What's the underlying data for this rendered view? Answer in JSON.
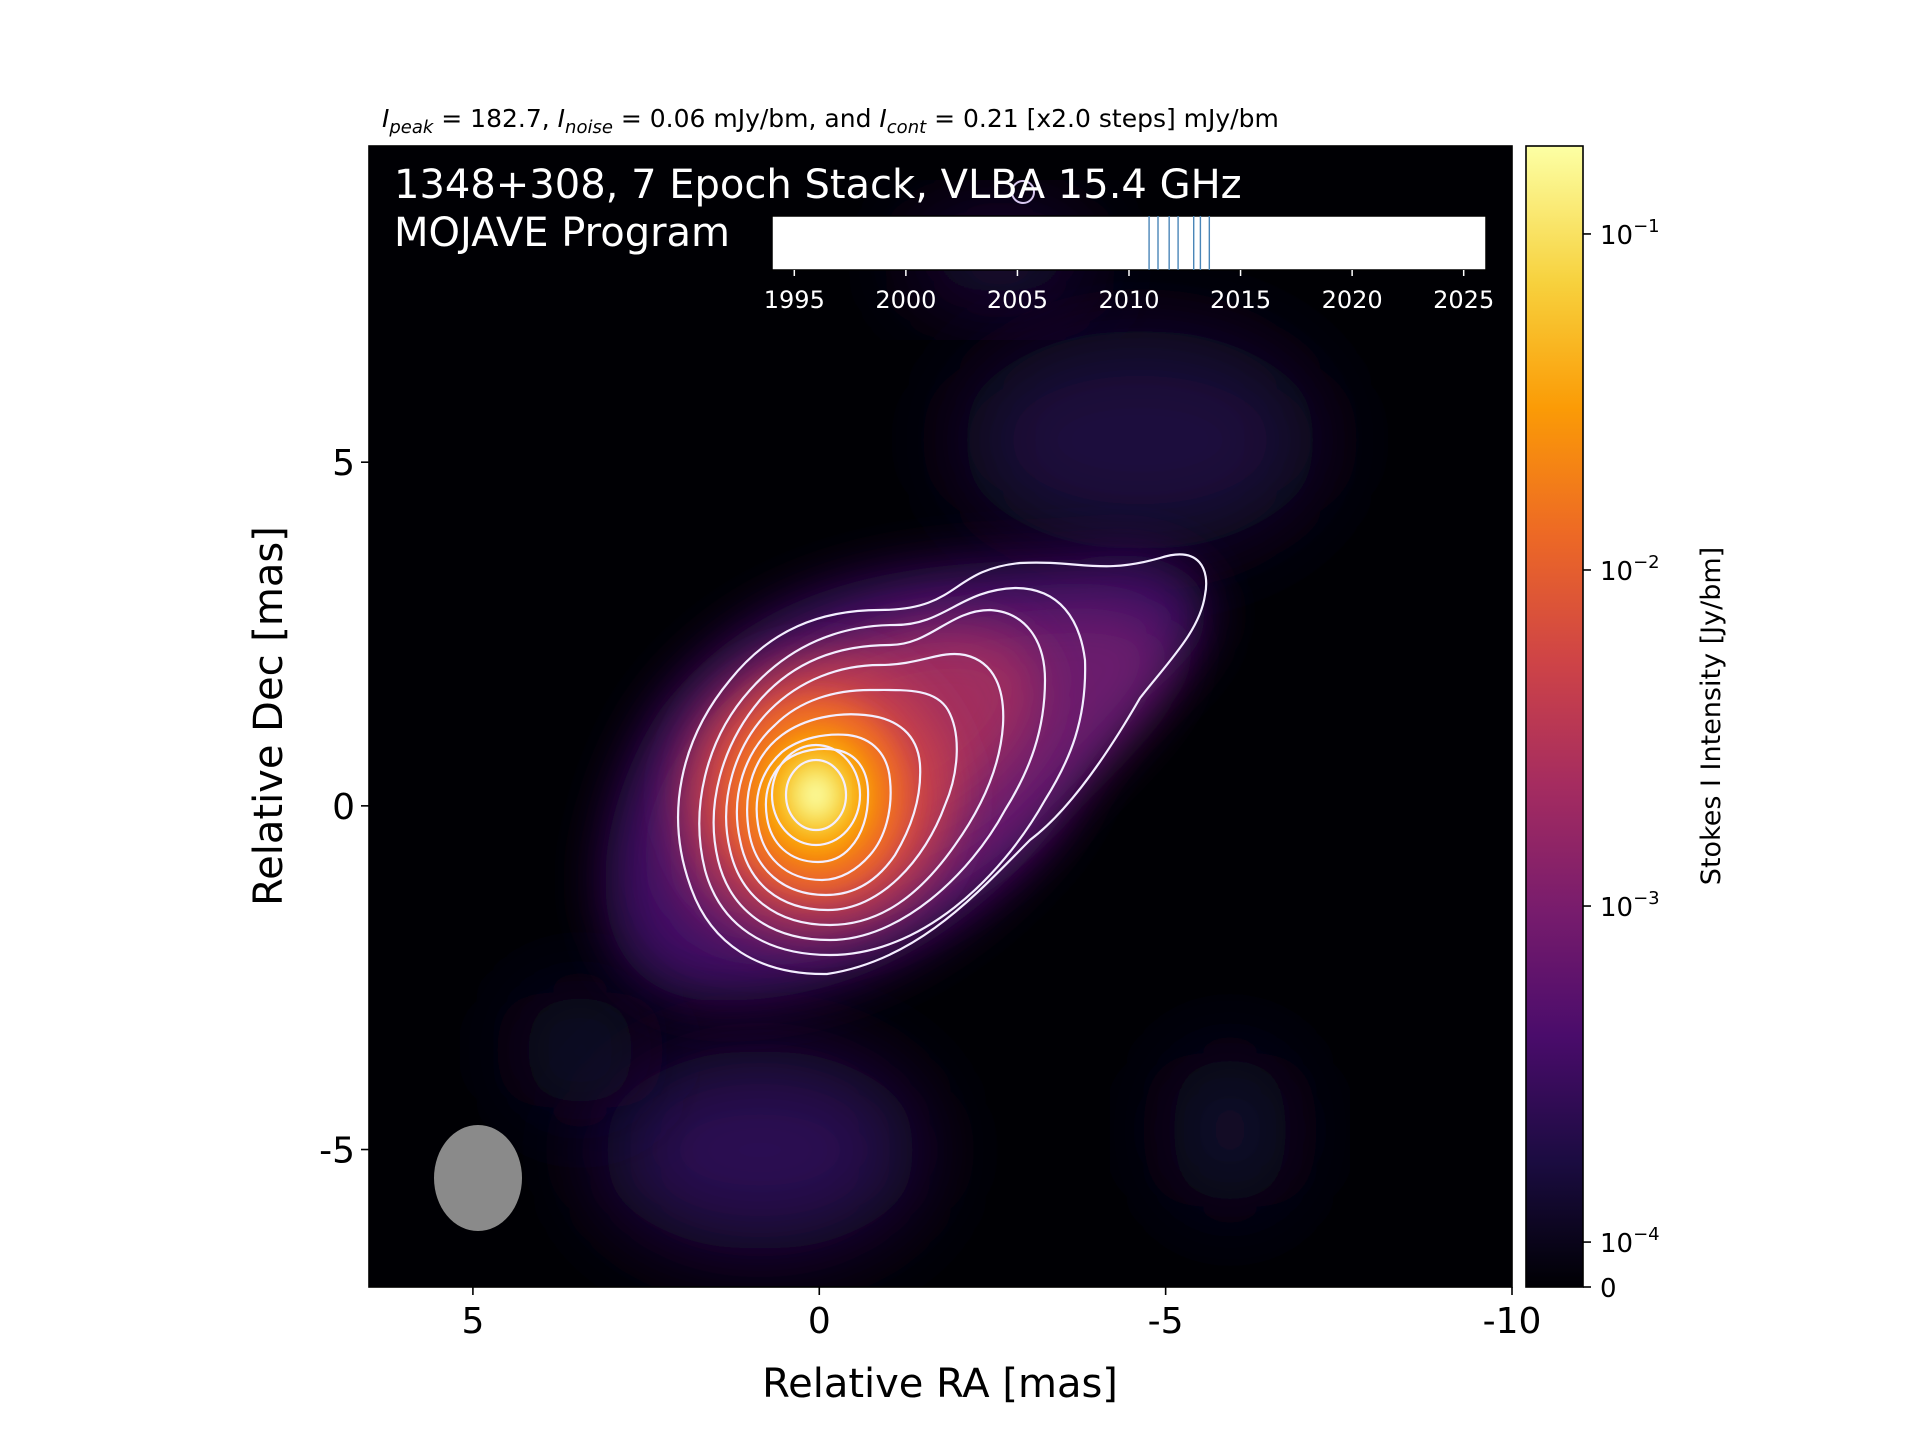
{
  "header": {
    "line_prefix": "I",
    "peak_sub": "peak",
    "peak_text": " = 182.7, ",
    "noise_sub": "noise",
    "noise_text": " = 0.06 mJy/bm, and ",
    "cont_sub": "cont",
    "cont_text": " = 0.21 [x2.0 steps] mJy/bm"
  },
  "overlay": {
    "title_line1": "1348+308, 7 Epoch Stack, VLBA 15.4 GHz",
    "title_line2": "MOJAVE Program"
  },
  "colors": {
    "background": "#000004",
    "contour": "#f3eeff",
    "beam": "#8a8a8a",
    "epoch_tick": "#4a86b8",
    "cmap": [
      "#000004",
      "#1b0c41",
      "#4a0c6b",
      "#781c6d",
      "#a52c60",
      "#cf4446",
      "#ed6925",
      "#fb9b06",
      "#f7d13d",
      "#fcffa4"
    ]
  },
  "chart_data": [
    {
      "type": "heatmap",
      "title": "1348+308, 7 Epoch Stack, VLBA 15.4 GHz",
      "subtitle": "MOJAVE Program",
      "xlabel": "Relative RA [mas]",
      "ylabel": "Relative Dec [mas]",
      "xlim": [
        6.5,
        -10
      ],
      "ylim": [
        -7,
        9.6
      ],
      "x_ticks": [
        5,
        0,
        -5,
        -10
      ],
      "x_tick_labels": [
        "5",
        "0",
        "-5",
        "-10"
      ],
      "y_ticks": [
        5,
        0,
        -5
      ],
      "y_tick_labels": [
        "5",
        "0",
        "-5"
      ],
      "grid": false,
      "peak_position_mas": [
        0,
        0
      ],
      "peak_intensity_mJy_per_beam": 182.7,
      "noise_mJy_per_beam": 0.06,
      "lowest_contour_mJy_per_beam": 0.21,
      "contour_step_factor": 2.0,
      "contour_levels_mJy_per_beam": [
        0.21,
        0.42,
        0.84,
        1.68,
        3.36,
        6.72,
        13.44,
        26.88,
        53.76,
        107.52
      ],
      "jet_direction": "north-west",
      "beam": {
        "ra_mas": 5,
        "dec_mas": -5.5,
        "major_mas": 1.6,
        "minor_mas": 1.25,
        "pa_deg": 0
      }
    },
    {
      "type": "scatter",
      "description_label": "epoch-timeline",
      "xlim": [
        1994,
        2026
      ],
      "x_ticks": [
        1995,
        2000,
        2005,
        2010,
        2015,
        2020,
        2025
      ],
      "x_tick_labels": [
        "1995",
        "2000",
        "2005",
        "2010",
        "2015",
        "2020",
        "2025"
      ],
      "epochs": [
        2010.9,
        2011.3,
        2011.8,
        2012.2,
        2012.9,
        2013.2,
        2013.6
      ]
    },
    {
      "type": "heatmap",
      "description_label": "colorbar",
      "ylabel": "Stokes I Intensity [Jy/bm]",
      "scale": "log",
      "range_Jy_per_beam": [
        0,
        0.1827
      ],
      "ticks": [
        0,
        0.0001,
        0.001,
        0.01,
        0.1
      ],
      "tick_label_mantissa": [
        "0",
        "10",
        "10",
        "10",
        "10"
      ],
      "tick_label_exponent": [
        "",
        "−4",
        "−3",
        "−2",
        "−1"
      ]
    }
  ]
}
